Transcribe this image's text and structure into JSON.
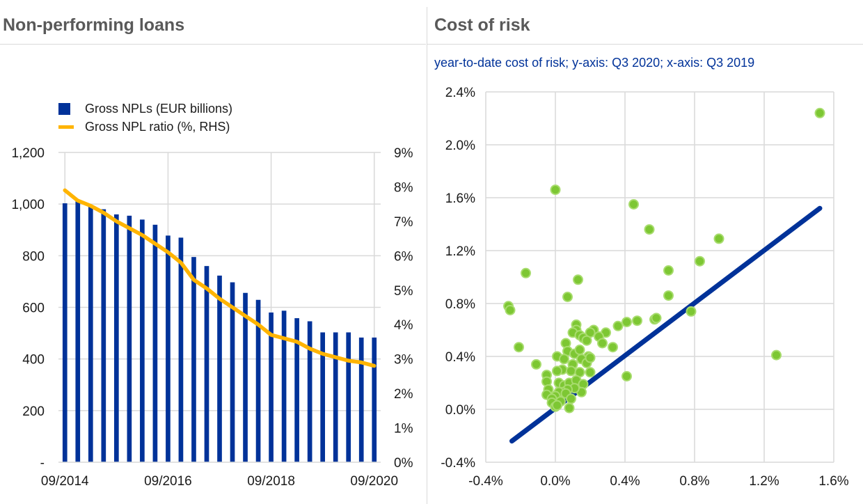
{
  "panels": {
    "left_title": "Non-performing loans",
    "right_title": "Cost of risk",
    "right_subtitle": "year-to-date cost of risk; y-axis: Q3 2020; x-axis: Q3 2019"
  },
  "colors": {
    "bar": "#003299",
    "ratio_line": "#ffb400",
    "scatter_fill": "#7dc733",
    "scatter_edge": "#a8dc6e",
    "diagonal": "#003299",
    "grid": "#d9d9d9"
  },
  "chart_data": [
    {
      "type": "bar",
      "title": "Non-performing loans",
      "legend": {
        "placement": "top-left",
        "bar_label": "Gross NPLs (EUR billions)",
        "line_label": "Gross NPL ratio (%, RHS)"
      },
      "x_tick_labels": [
        "09/2014",
        "09/2016",
        "09/2018",
        "09/2020"
      ],
      "y_left": {
        "ylim": [
          0,
          1200
        ],
        "ticks": [
          0,
          200,
          400,
          600,
          800,
          1000,
          1200
        ],
        "tick_labels": [
          "-",
          "200",
          "400",
          "600",
          "800",
          "1,000",
          "1,200"
        ]
      },
      "y_right": {
        "ylim": [
          0,
          9
        ],
        "ticks": [
          0,
          1,
          2,
          3,
          4,
          5,
          6,
          7,
          8,
          9
        ],
        "tick_labels": [
          "0%",
          "1%",
          "2%",
          "3%",
          "4%",
          "5%",
          "6%",
          "7%",
          "8%",
          "9%"
        ]
      },
      "categories": [
        "Q3 2014",
        "Q4 2014",
        "Q1 2015",
        "Q2 2015",
        "Q3 2015",
        "Q4 2015",
        "Q1 2016",
        "Q2 2016",
        "Q3 2016",
        "Q4 2016",
        "Q1 2017",
        "Q2 2017",
        "Q3 2017",
        "Q4 2017",
        "Q1 2018",
        "Q2 2018",
        "Q3 2018",
        "Q4 2018",
        "Q1 2019",
        "Q2 2019",
        "Q3 2019",
        "Q4 2019",
        "Q1 2020",
        "Q2 2020",
        "Q3 2020"
      ],
      "series": [
        {
          "name": "Gross NPLs (EUR billions)",
          "axis": "left",
          "values": [
            1003,
            1010,
            990,
            980,
            960,
            955,
            940,
            920,
            878,
            870,
            795,
            760,
            723,
            697,
            656,
            629,
            580,
            587,
            558,
            546,
            503,
            503,
            503,
            483,
            483
          ]
        },
        {
          "name": "Gross NPL ratio (%, RHS)",
          "axis": "right",
          "values": [
            7.9,
            7.6,
            7.45,
            7.25,
            7.0,
            6.8,
            6.6,
            6.35,
            6.1,
            5.8,
            5.3,
            5.05,
            4.75,
            4.5,
            4.25,
            4.0,
            3.7,
            3.6,
            3.5,
            3.3,
            3.15,
            3.05,
            2.95,
            2.9,
            2.8
          ]
        }
      ]
    },
    {
      "type": "scatter",
      "title": "Cost of risk",
      "subtitle": "year-to-date cost of risk; y-axis: Q3 2020; x-axis: Q3 2019",
      "xlim": [
        -0.4,
        1.6
      ],
      "ylim": [
        -0.4,
        2.4
      ],
      "x_ticks": [
        -0.4,
        0.0,
        0.4,
        0.8,
        1.2,
        1.6
      ],
      "x_tick_labels": [
        "-0.4%",
        "0.0%",
        "0.4%",
        "0.8%",
        "1.2%",
        "1.6%"
      ],
      "y_ticks": [
        -0.4,
        0.0,
        0.4,
        0.8,
        1.2,
        1.6,
        2.0,
        2.4
      ],
      "y_tick_labels": [
        "-0.4%",
        "0.0%",
        "0.4%",
        "0.8%",
        "1.2%",
        "1.6%",
        "2.0%",
        "2.4%"
      ],
      "grid": true,
      "reference_line": {
        "from": [
          -0.25,
          -0.24
        ],
        "to": [
          1.52,
          1.52
        ]
      },
      "points": [
        [
          1.52,
          2.24
        ],
        [
          0.0,
          1.66
        ],
        [
          0.45,
          1.55
        ],
        [
          0.54,
          1.36
        ],
        [
          0.94,
          1.29
        ],
        [
          -0.17,
          1.03
        ],
        [
          0.65,
          1.05
        ],
        [
          0.83,
          1.12
        ],
        [
          0.13,
          0.98
        ],
        [
          0.07,
          0.85
        ],
        [
          -0.27,
          0.78
        ],
        [
          -0.26,
          0.75
        ],
        [
          0.65,
          0.86
        ],
        [
          0.78,
          0.74
        ],
        [
          1.27,
          0.41
        ],
        [
          0.57,
          0.68
        ],
        [
          0.58,
          0.69
        ],
        [
          0.47,
          0.67
        ],
        [
          0.41,
          0.66
        ],
        [
          0.36,
          0.63
        ],
        [
          0.12,
          0.64
        ],
        [
          0.22,
          0.6
        ],
        [
          0.2,
          0.58
        ],
        [
          0.29,
          0.58
        ],
        [
          0.25,
          0.55
        ],
        [
          0.12,
          0.6
        ],
        [
          0.1,
          0.58
        ],
        [
          0.14,
          0.56
        ],
        [
          0.16,
          0.54
        ],
        [
          0.18,
          0.52
        ],
        [
          0.27,
          0.5
        ],
        [
          0.33,
          0.47
        ],
        [
          0.06,
          0.5
        ],
        [
          0.07,
          0.44
        ],
        [
          0.11,
          0.42
        ],
        [
          0.14,
          0.45
        ],
        [
          0.19,
          0.4
        ],
        [
          0.15,
          0.38
        ],
        [
          0.01,
          0.4
        ],
        [
          0.05,
          0.38
        ],
        [
          0.18,
          0.35
        ],
        [
          0.2,
          0.39
        ],
        [
          0.1,
          0.34
        ],
        [
          -0.21,
          0.47
        ],
        [
          -0.11,
          0.34
        ],
        [
          0.04,
          0.3
        ],
        [
          0.09,
          0.29
        ],
        [
          0.14,
          0.28
        ],
        [
          0.2,
          0.28
        ],
        [
          0.01,
          0.29
        ],
        [
          -0.05,
          0.26
        ],
        [
          -0.05,
          0.21
        ],
        [
          0.02,
          0.2
        ],
        [
          0.05,
          0.18
        ],
        [
          0.08,
          0.2
        ],
        [
          0.12,
          0.22
        ],
        [
          0.16,
          0.19
        ],
        [
          0.15,
          0.13
        ],
        [
          0.11,
          0.16
        ],
        [
          0.07,
          0.15
        ],
        [
          0.04,
          0.13
        ],
        [
          0.02,
          0.13
        ],
        [
          -0.04,
          0.15
        ],
        [
          0.0,
          0.1
        ],
        [
          -0.05,
          0.11
        ],
        [
          -0.02,
          0.08
        ],
        [
          -0.02,
          0.05
        ],
        [
          0.03,
          0.06
        ],
        [
          0.0,
          0.02
        ],
        [
          0.01,
          0.03
        ],
        [
          0.06,
          0.12
        ],
        [
          0.09,
          0.08
        ],
        [
          0.08,
          0.01
        ],
        [
          0.41,
          0.25
        ]
      ]
    }
  ]
}
